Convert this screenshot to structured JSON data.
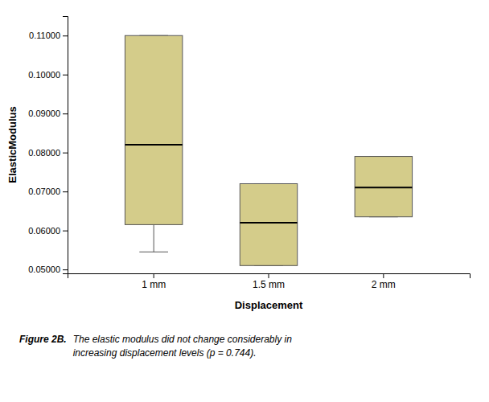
{
  "chart_data": {
    "type": "box",
    "x_label": "Displacement",
    "y_label": "ElasticModulus",
    "categories": [
      "1 mm",
      "1.5 mm",
      "2 mm"
    ],
    "values": [
      {
        "low": 0.0545,
        "q1": 0.0615,
        "median": 0.082,
        "q3": 0.11,
        "high": 0.11
      },
      {
        "low": 0.051,
        "q1": 0.051,
        "median": 0.062,
        "q3": 0.072,
        "high": 0.072
      },
      {
        "low": 0.0635,
        "q1": 0.0635,
        "median": 0.071,
        "q3": 0.079,
        "high": 0.079
      }
    ],
    "color": "#d4cc8a",
    "ylim": [
      0.049,
      0.115
    ],
    "yticks": [
      {
        "value": 0.05,
        "label": "0.05000"
      },
      {
        "value": 0.06,
        "label": "0.06000"
      },
      {
        "value": 0.07,
        "label": "0.07000"
      },
      {
        "value": 0.08,
        "label": "0.08000"
      },
      {
        "value": 0.09,
        "label": "0.09000"
      },
      {
        "value": 0.1,
        "label": "0.10000"
      },
      {
        "value": 0.11,
        "label": "0.11000"
      }
    ],
    "grid": false,
    "annotations": [
      "Figure 2B.",
      "The elastic modulus did not change considerably in\nincreasing displacement levels (p = 0.744)."
    ]
  }
}
